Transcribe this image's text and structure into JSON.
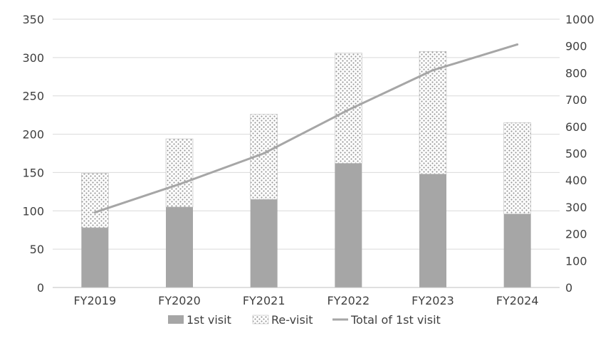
{
  "chart_data": {
    "type": "bar",
    "stacked": true,
    "categories": [
      "FY2019",
      "FY2020",
      "FY2021",
      "FY2022",
      "FY2023",
      "FY2024"
    ],
    "series": [
      {
        "name": "1st visit",
        "kind": "bar",
        "axis": "left",
        "color": "#a6a6a6",
        "pattern": "solid",
        "values": [
          78,
          105,
          115,
          162,
          148,
          96
        ]
      },
      {
        "name": "Re-visit",
        "kind": "bar",
        "axis": "left",
        "color": "#bfbfbf",
        "pattern": "dotted-hatch",
        "values": [
          71,
          89,
          111,
          144,
          160,
          119
        ]
      },
      {
        "name": "Total of 1st visit",
        "kind": "line",
        "axis": "right",
        "color": "#a6a6a6",
        "values": [
          280,
          385,
          500,
          662,
          810,
          906
        ]
      }
    ],
    "y_left": {
      "min": 0,
      "max": 350,
      "ticks": [
        0,
        50,
        100,
        150,
        200,
        250,
        300,
        350
      ]
    },
    "y_right": {
      "min": 0,
      "max": 1000,
      "ticks": [
        0,
        100,
        200,
        300,
        400,
        500,
        600,
        700,
        800,
        900,
        1000
      ]
    },
    "grid": true,
    "legend_position": "bottom",
    "title": "",
    "xlabel": "",
    "ylabel": ""
  }
}
